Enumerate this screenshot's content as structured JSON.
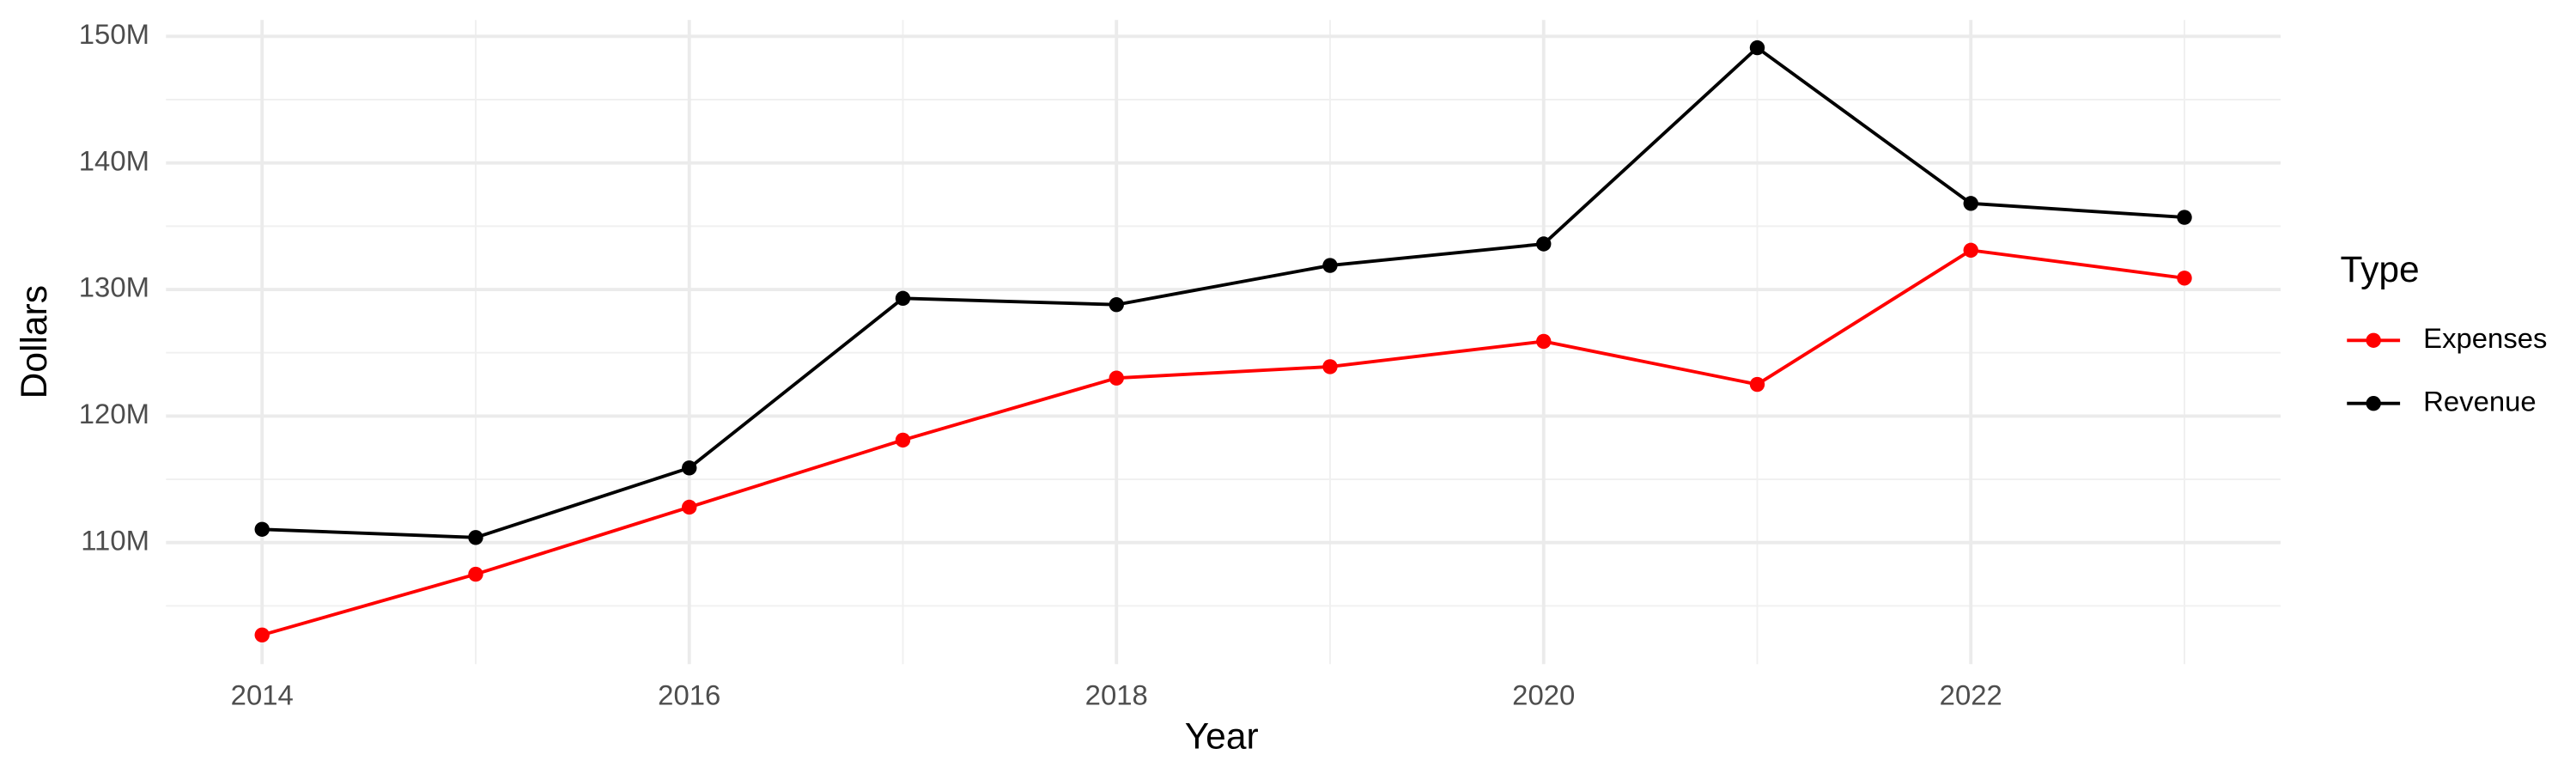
{
  "chart_data": {
    "type": "line",
    "x_label": "Year",
    "y_label": "Dollars",
    "legend_title": "Type",
    "x": [
      2014,
      2015,
      2016,
      2017,
      2018,
      2019,
      2020,
      2021,
      2022,
      2023
    ],
    "series": [
      {
        "name": "Expenses",
        "color": "#ff0000",
        "values": [
          102700000,
          107500000,
          112800000,
          118100000,
          123000000,
          123900000,
          125900000,
          122500000,
          133100000,
          130900000
        ]
      },
      {
        "name": "Revenue",
        "color": "#000000",
        "values": [
          111050000,
          110400000,
          115900000,
          129300000,
          128800000,
          131900000,
          133600000,
          149100000,
          136800000,
          135700000
        ]
      }
    ],
    "xlim": [
      2013.55,
      2023.45
    ],
    "xticks": [
      2014,
      2016,
      2018,
      2020,
      2022
    ],
    "ylim": [
      100400000,
      151300000
    ],
    "yticks": [
      {
        "value": 110000000,
        "label": "110M"
      },
      {
        "value": 120000000,
        "label": "120M"
      },
      {
        "value": 130000000,
        "label": "130M"
      },
      {
        "value": 140000000,
        "label": "140M"
      },
      {
        "value": 150000000,
        "label": "150M"
      }
    ],
    "grid": true,
    "legend": "right"
  }
}
